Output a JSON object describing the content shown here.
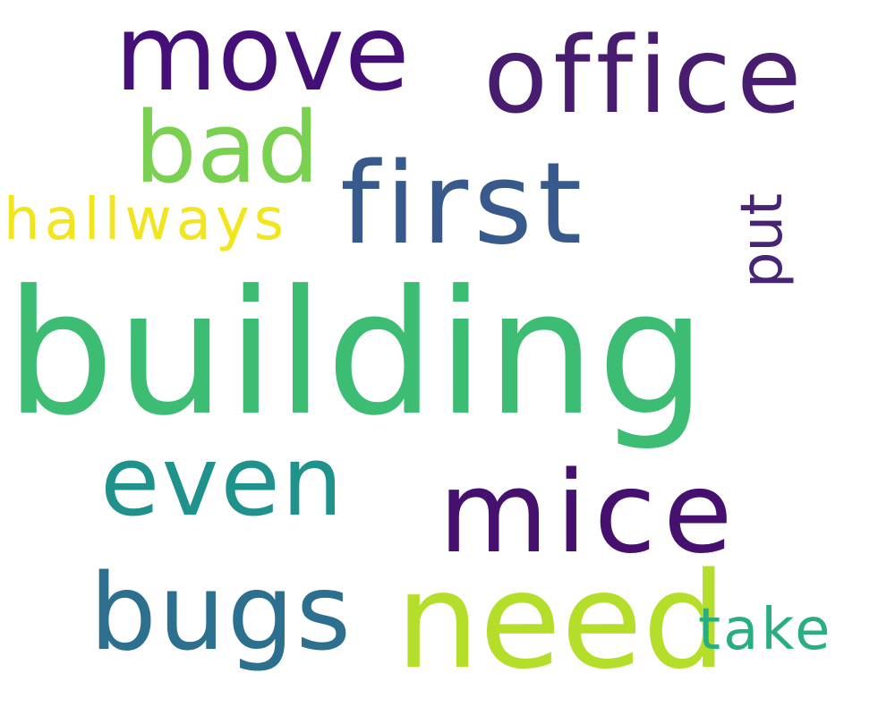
{
  "words": {
    "building": {
      "text": "building",
      "color": "#3dbc74"
    },
    "move": {
      "text": "move",
      "color": "#440f76"
    },
    "office": {
      "text": "office",
      "color": "#481c6e"
    },
    "bad": {
      "text": "bad",
      "color": "#7ad151"
    },
    "first": {
      "text": "first",
      "color": "#38598c"
    },
    "hallways": {
      "text": "hallways",
      "color": "#f1e51d"
    },
    "put": {
      "text": "put",
      "color": "#482475"
    },
    "even": {
      "text": "even",
      "color": "#20928c"
    },
    "mice": {
      "text": "mice",
      "color": "#46116e"
    },
    "bugs": {
      "text": "bugs",
      "color": "#2d6f8e"
    },
    "need": {
      "text": "need",
      "color": "#b5de2b"
    },
    "take": {
      "text": "take",
      "color": "#29af7f"
    }
  }
}
